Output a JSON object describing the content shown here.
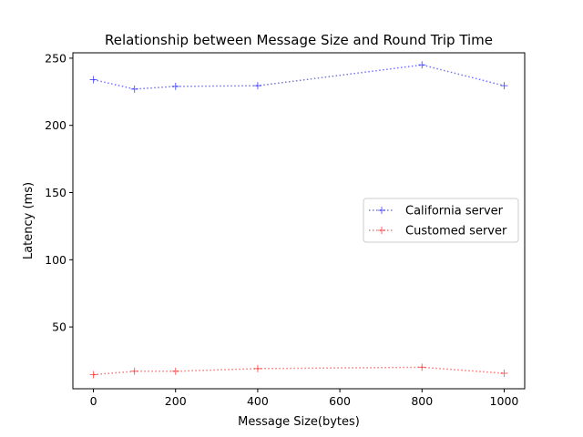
{
  "chart_data": {
    "type": "line",
    "title": "Relationship between Message Size and Round Trip Time",
    "xlabel": "Message Size(bytes)",
    "ylabel": "Latency (ms)",
    "x": [
      0,
      100,
      200,
      400,
      800,
      1000
    ],
    "xlim": [
      -50,
      1050
    ],
    "ylim": [
      4,
      254
    ],
    "xticks": [
      0,
      200,
      400,
      600,
      800,
      1000
    ],
    "yticks": [
      50,
      100,
      150,
      200,
      250
    ],
    "grid": false,
    "legend_position": "center-right",
    "series": [
      {
        "name": "California server",
        "values": [
          234,
          227,
          229,
          229.5,
          245,
          229.5
        ],
        "color": "#0000ff",
        "marker": "plus",
        "line_style": "dotted"
      },
      {
        "name": "Customed server",
        "values": [
          14.5,
          17,
          17,
          19,
          20,
          15.5
        ],
        "color": "#ff0000",
        "marker": "plus",
        "line_style": "dotted"
      }
    ]
  }
}
